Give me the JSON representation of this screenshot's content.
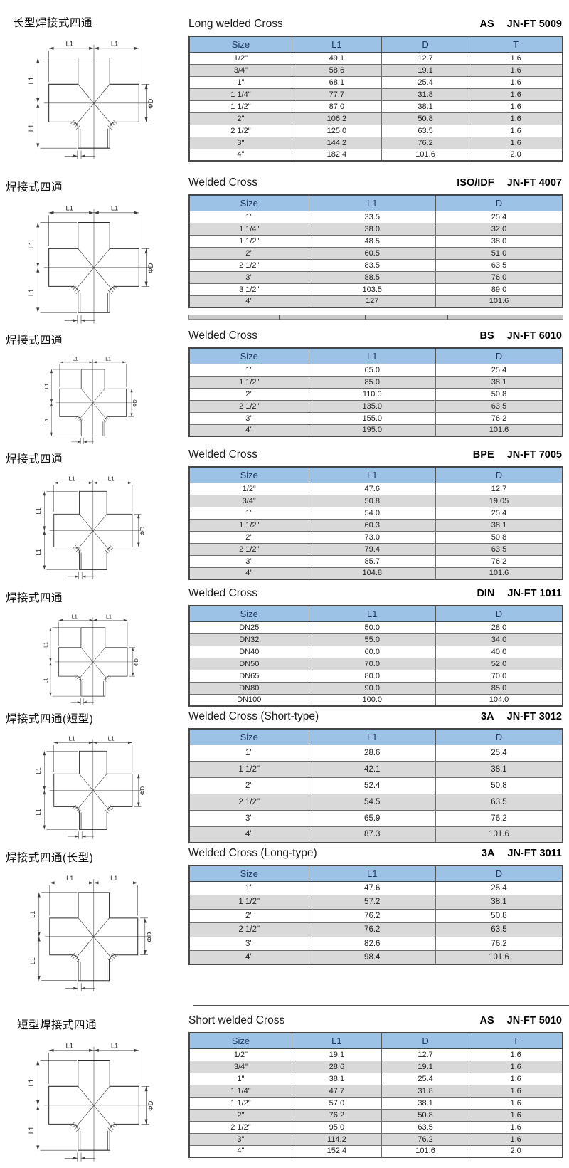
{
  "colors": {
    "header_bg": "#9CC2E6",
    "header_text": "#1F3864",
    "row_alt": "#D9D9D9",
    "table_border": "#4a4a4a"
  },
  "diagram": {
    "l1": "L1",
    "phid": "ΦD"
  },
  "sections": [
    {
      "cn_title": "长型焊接式四通",
      "en_title": "Long welded Cross",
      "standard": "AS",
      "code": "JN-FT 5009",
      "columns": [
        "Size",
        "L1",
        "D",
        "T"
      ],
      "rows": [
        [
          "1/2\"",
          "49.1",
          "12.7",
          "1.6"
        ],
        [
          "3/4\"",
          "58.6",
          "19.1",
          "1.6"
        ],
        [
          "1\"",
          "68.1",
          "25.4",
          "1.6"
        ],
        [
          "1 1/4\"",
          "77.7",
          "31.8",
          "1.6"
        ],
        [
          "1 1/2\"",
          "87.0",
          "38.1",
          "1.6"
        ],
        [
          "2\"",
          "106.2",
          "50.8",
          "1.6"
        ],
        [
          "2 1/2\"",
          "125.0",
          "63.5",
          "1.6"
        ],
        [
          "3\"",
          "144.2",
          "76.2",
          "1.6"
        ],
        [
          "4\"",
          "182.4",
          "101.6",
          "2.0"
        ]
      ]
    },
    {
      "cn_title": "焊接式四通",
      "en_title": "Welded Cross",
      "standard": "ISO/IDF",
      "code": "JN-FT 4007",
      "columns": [
        "Size",
        "L1",
        "D"
      ],
      "divider_after": true,
      "rows": [
        [
          "1\"",
          "33.5",
          "25.4"
        ],
        [
          "1 1/4\"",
          "38.0",
          "32.0"
        ],
        [
          "1 1/2\"",
          "48.5",
          "38.0"
        ],
        [
          "2\"",
          "60.5",
          "51.0"
        ],
        [
          "2 1/2\"",
          "83.5",
          "63.5"
        ],
        [
          "3\"",
          "88.5",
          "76.0"
        ],
        [
          "3 1/2\"",
          "103.5",
          "89.0"
        ],
        [
          "4\"",
          "127",
          "101.6"
        ]
      ]
    },
    {
      "cn_title": "焊接式四通",
      "en_title": "Welded Cross",
      "standard": "BS",
      "code": "JN-FT 6010",
      "columns": [
        "Size",
        "L1",
        "D"
      ],
      "rows": [
        [
          "1\"",
          "65.0",
          "25.4"
        ],
        [
          "1 1/2\"",
          "85.0",
          "38.1"
        ],
        [
          "2\"",
          "110.0",
          "50.8"
        ],
        [
          "2 1/2\"",
          "135.0",
          "63.5"
        ],
        [
          "3\"",
          "155.0",
          "76.2"
        ],
        [
          "4\"",
          "195.0",
          "101.6"
        ]
      ]
    },
    {
      "cn_title": "焊接式四通",
      "en_title": "Welded Cross",
      "standard": "BPE",
      "code": "JN-FT 7005",
      "columns": [
        "Size",
        "L1",
        "D"
      ],
      "rows": [
        [
          "1/2\"",
          "47.6",
          "12.7"
        ],
        [
          "3/4\"",
          "50.8",
          "19.05"
        ],
        [
          "1\"",
          "54.0",
          "25.4"
        ],
        [
          "1 1/2\"",
          "60.3",
          "38.1"
        ],
        [
          "2\"",
          "73.0",
          "50.8"
        ],
        [
          "2 1/2\"",
          "79.4",
          "63.5"
        ],
        [
          "3\"",
          "85.7",
          "76.2"
        ],
        [
          "4\"",
          "104.8",
          "101.6"
        ]
      ]
    },
    {
      "cn_title": "焊接式四通",
      "en_title": "Welded Cross",
      "standard": "DIN",
      "code": "JN-FT 1011",
      "columns": [
        "Size",
        "L1",
        "D"
      ],
      "rows": [
        [
          "DN25",
          "50.0",
          "28.0"
        ],
        [
          "DN32",
          "55.0",
          "34.0"
        ],
        [
          "DN40",
          "60.0",
          "40.0"
        ],
        [
          "DN50",
          "70.0",
          "52.0"
        ],
        [
          "DN65",
          "80.0",
          "70.0"
        ],
        [
          "DN80",
          "90.0",
          "85.0"
        ],
        [
          "DN100",
          "100.0",
          "104.0"
        ]
      ]
    },
    {
      "cn_title": "焊接式四通(短型)",
      "en_title": "Welded Cross (Short-type)",
      "standard": "3A",
      "code": "JN-FT 3012",
      "columns": [
        "Size",
        "L1",
        "D"
      ],
      "rows": [
        [
          "1\"",
          "28.6",
          "25.4"
        ],
        [
          "1 1/2\"",
          "42.1",
          "38.1"
        ],
        [
          "2\"",
          "52.4",
          "50.8"
        ],
        [
          "2 1/2\"",
          "54.5",
          "63.5"
        ],
        [
          "3\"",
          "65.9",
          "76.2"
        ],
        [
          "4\"",
          "87.3",
          "101.6"
        ]
      ]
    },
    {
      "cn_title": "焊接式四通(长型)",
      "en_title": "Welded Cross (Long-type)",
      "standard": "3A",
      "code": "JN-FT 3011",
      "columns": [
        "Size",
        "L1",
        "D"
      ],
      "rows": [
        [
          "1\"",
          "47.6",
          "25.4"
        ],
        [
          "1 1/2\"",
          "57.2",
          "38.1"
        ],
        [
          "2\"",
          "76.2",
          "50.8"
        ],
        [
          "2 1/2\"",
          "76.2",
          "63.5"
        ],
        [
          "3\"",
          "82.6",
          "76.2"
        ],
        [
          "4\"",
          "98.4",
          "101.6"
        ]
      ]
    },
    {
      "cn_title": "短型焊接式四通",
      "en_title": "Short welded Cross",
      "standard": "AS",
      "code": "JN-FT 5010",
      "columns": [
        "Size",
        "L1",
        "D",
        "T"
      ],
      "rule_above": true,
      "rows": [
        [
          "1/2\"",
          "19.1",
          "12.7",
          "1.6"
        ],
        [
          "3/4\"",
          "28.6",
          "19.1",
          "1.6"
        ],
        [
          "1\"",
          "38.1",
          "25.4",
          "1.6"
        ],
        [
          "1 1/4\"",
          "47.7",
          "31.8",
          "1.6"
        ],
        [
          "1 1/2\"",
          "57.0",
          "38.1",
          "1.6"
        ],
        [
          "2\"",
          "76.2",
          "50.8",
          "1.6"
        ],
        [
          "2 1/2\"",
          "95.0",
          "63.5",
          "1.6"
        ],
        [
          "3\"",
          "114.2",
          "76.2",
          "1.6"
        ],
        [
          "4\"",
          "152.4",
          "101.6",
          "2.0"
        ]
      ]
    }
  ]
}
